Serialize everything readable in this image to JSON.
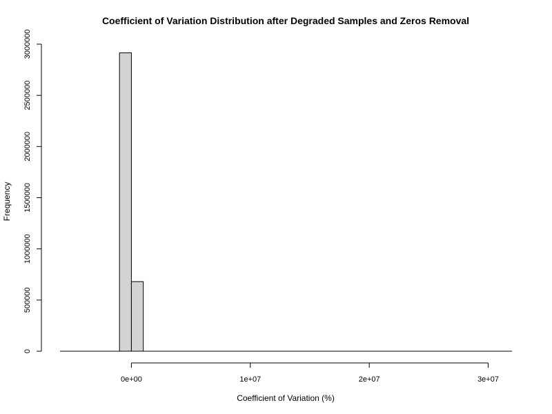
{
  "chart_data": {
    "type": "bar",
    "title": "Coefficient of Variation Distribution after Degraded Samples and Zeros Removal",
    "xlabel": "Coefficient of Variation (%)",
    "ylabel": "Frequency",
    "xlim": [
      -6000000,
      32000000
    ],
    "ylim": [
      0,
      3000000
    ],
    "bin_width": 1000000,
    "bins": [
      {
        "x0": -1000000,
        "x1": 0,
        "count": 2915000
      },
      {
        "x0": 0,
        "x1": 1000000,
        "count": 680000
      },
      {
        "x0": 1000000,
        "x1": 2000000,
        "count": 0
      },
      {
        "x0": 2000000,
        "x1": 3000000,
        "count": 0
      },
      {
        "x0": 3000000,
        "x1": 4000000,
        "count": 0
      },
      {
        "x0": 4000000,
        "x1": 5000000,
        "count": 0
      },
      {
        "x0": 5000000,
        "x1": 6000000,
        "count": 0
      },
      {
        "x0": 6000000,
        "x1": 7000000,
        "count": 0
      },
      {
        "x0": 7000000,
        "x1": 8000000,
        "count": 0
      },
      {
        "x0": 8000000,
        "x1": 9000000,
        "count": 0
      },
      {
        "x0": 9000000,
        "x1": 10000000,
        "count": 0
      },
      {
        "x0": 10000000,
        "x1": 11000000,
        "count": 0
      },
      {
        "x0": 11000000,
        "x1": 12000000,
        "count": 0
      },
      {
        "x0": 12000000,
        "x1": 13000000,
        "count": 0
      },
      {
        "x0": 13000000,
        "x1": 14000000,
        "count": 0
      },
      {
        "x0": 14000000,
        "x1": 15000000,
        "count": 0
      },
      {
        "x0": 15000000,
        "x1": 16000000,
        "count": 0
      },
      {
        "x0": 16000000,
        "x1": 17000000,
        "count": 0
      },
      {
        "x0": 17000000,
        "x1": 18000000,
        "count": 0
      },
      {
        "x0": 18000000,
        "x1": 19000000,
        "count": 0
      },
      {
        "x0": 19000000,
        "x1": 20000000,
        "count": 0
      },
      {
        "x0": 20000000,
        "x1": 21000000,
        "count": 0
      },
      {
        "x0": 21000000,
        "x1": 22000000,
        "count": 0
      },
      {
        "x0": 22000000,
        "x1": 23000000,
        "count": 0
      },
      {
        "x0": 23000000,
        "x1": 24000000,
        "count": 0
      },
      {
        "x0": 24000000,
        "x1": 25000000,
        "count": 0
      },
      {
        "x0": 25000000,
        "x1": 26000000,
        "count": 0
      },
      {
        "x0": 26000000,
        "x1": 27000000,
        "count": 0
      },
      {
        "x0": 27000000,
        "x1": 28000000,
        "count": 0
      },
      {
        "x0": 28000000,
        "x1": 29000000,
        "count": 0
      },
      {
        "x0": 29000000,
        "x1": 30000000,
        "count": 0
      },
      {
        "x0": 30000000,
        "x1": 31000000,
        "count": 0
      }
    ],
    "x_ticks": [
      {
        "value": 0,
        "label": "0e+00"
      },
      {
        "value": 10000000,
        "label": "1e+07"
      },
      {
        "value": 20000000,
        "label": "2e+07"
      },
      {
        "value": 30000000,
        "label": "3e+07"
      }
    ],
    "y_ticks": [
      {
        "value": 0,
        "label": "0"
      },
      {
        "value": 500000,
        "label": "500000"
      },
      {
        "value": 1000000,
        "label": "1000000"
      },
      {
        "value": 1500000,
        "label": "1500000"
      },
      {
        "value": 2000000,
        "label": "2000000"
      },
      {
        "value": 2500000,
        "label": "2500000"
      },
      {
        "value": 3000000,
        "label": "3000000"
      }
    ],
    "baseline_range": [
      -6000000,
      32000000
    ],
    "grid": false,
    "legend": "none",
    "colors": {
      "bar_fill": "#d3d3d3",
      "bar_stroke": "#000000",
      "background": "#ffffff"
    }
  }
}
